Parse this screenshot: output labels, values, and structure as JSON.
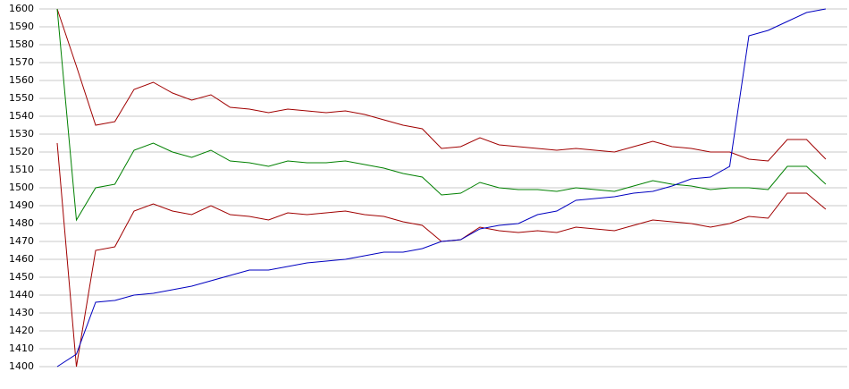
{
  "chart_data": {
    "type": "line",
    "categories": [
      null,
      null,
      null,
      null,
      null,
      null,
      null,
      null,
      null,
      null,
      null,
      null,
      null,
      null,
      null,
      null,
      null,
      null,
      null,
      null,
      null,
      null,
      null,
      null,
      null,
      null,
      null,
      null,
      null,
      null,
      null,
      null,
      null,
      null,
      null,
      null,
      null,
      null,
      null,
      null,
      null
    ],
    "series": [
      {
        "color": "#a00000",
        "values": [
          1600,
          1568,
          1535,
          1537,
          1555,
          1559,
          1553,
          1549,
          1552,
          1545,
          1544,
          1542,
          1544,
          1543,
          1542,
          1543,
          1541,
          1538,
          1535,
          1533,
          1522,
          1523,
          1528,
          1524,
          1523,
          1522,
          1521,
          1522,
          1521,
          1520,
          1523,
          1526,
          1523,
          1522,
          1520,
          1520,
          1516,
          1515,
          1527,
          1527,
          1516
        ]
      },
      {
        "color": "#008000",
        "values": [
          1600,
          1482,
          1500,
          1502,
          1521,
          1525,
          1520,
          1517,
          1521,
          1515,
          1514,
          1512,
          1515,
          1514,
          1514,
          1515,
          1513,
          1511,
          1508,
          1506,
          1496,
          1497,
          1503,
          1500,
          1499,
          1499,
          1498,
          1500,
          1499,
          1498,
          1501,
          1504,
          1502,
          1501,
          1499,
          1500,
          1500,
          1499,
          1512,
          1512,
          1502
        ]
      },
      {
        "color": "#a00000",
        "values": [
          1525,
          1400,
          1465,
          1467,
          1487,
          1491,
          1487,
          1485,
          1490,
          1485,
          1484,
          1482,
          1486,
          1485,
          1486,
          1487,
          1485,
          1484,
          1481,
          1479,
          1470,
          1471,
          1478,
          1476,
          1475,
          1476,
          1475,
          1478,
          1477,
          1476,
          1479,
          1482,
          1481,
          1480,
          1478,
          1480,
          1484,
          1483,
          1497,
          1497,
          1488
        ]
      },
      {
        "color": "#0000c0",
        "values": [
          1400,
          1407,
          1436,
          1437,
          1440,
          1441,
          1443,
          1445,
          1448,
          1451,
          1454,
          1454,
          1456,
          1458,
          1459,
          1460,
          1462,
          1464,
          1464,
          1466,
          1470,
          1471,
          1477,
          1479,
          1480,
          1485,
          1487,
          1493,
          1494,
          1495,
          1497,
          1498,
          1501,
          1505,
          1506,
          1512,
          1585,
          1588,
          1593,
          1598,
          1600
        ]
      }
    ],
    "ylim": [
      1400,
      1600
    ],
    "yticks": [
      1400,
      1410,
      1420,
      1430,
      1440,
      1450,
      1460,
      1470,
      1480,
      1490,
      1500,
      1510,
      1520,
      1530,
      1540,
      1550,
      1560,
      1570,
      1580,
      1590,
      1600
    ],
    "grid": true
  }
}
